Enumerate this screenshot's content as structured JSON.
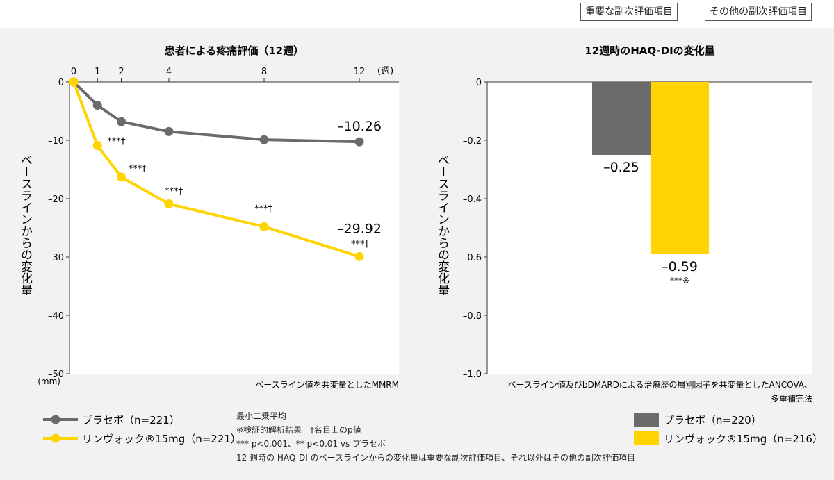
{
  "buttons": {
    "important": "重要な副次評価項目",
    "other": "その他の副次評価項目"
  },
  "colors": {
    "placebo": "#6b6b6b",
    "rinvoq": "#ffd400",
    "plot_bg": "#ffffff",
    "page_bg": "#f2f2f2"
  },
  "chart_data": [
    {
      "type": "line",
      "title": "患者による疼痛評価（12週）",
      "ylabel": "ベースラインからの変化量",
      "y_unit": "(mm)",
      "x_unit": "(週)",
      "x": [
        0,
        1,
        2,
        4,
        8,
        12
      ],
      "x_ticks": [
        "0",
        "1",
        "2",
        "4",
        "8",
        "12"
      ],
      "ylim": [
        -50,
        0
      ],
      "y_ticks": [
        "0",
        "–10",
        "–20",
        "–30",
        "–40",
        "–50"
      ],
      "series": [
        {
          "name": "プラセボ（n=221）",
          "values": [
            0,
            -4,
            -6.8,
            -8.5,
            -9.9,
            -10.26
          ]
        },
        {
          "name": "リンヴォック®15mg（n=221）",
          "values": [
            0,
            -10.9,
            -16.3,
            -20.9,
            -24.8,
            -29.92
          ]
        }
      ],
      "end_labels": [
        "–10.26",
        "–29.92"
      ],
      "significance": [
        "***†",
        "***†",
        "***†",
        "***†",
        "***†"
      ],
      "footnote": "ベースライン値を共変量としたMMRM"
    },
    {
      "type": "bar",
      "title": "12週時のHAQ-DIの変化量",
      "ylabel": "ベースラインからの変化量",
      "ylim": [
        -1.0,
        0
      ],
      "y_ticks": [
        "0",
        "–0.2",
        "–0.4",
        "–0.6",
        "–0.8",
        "–1.0"
      ],
      "categories": [
        "プラセボ（n=220）",
        "リンヴォック®15mg（n=216）"
      ],
      "values": [
        -0.25,
        -0.59
      ],
      "value_labels": [
        "–0.25",
        "–0.59"
      ],
      "significance": "***※",
      "footnote_line1": "ベースライン値及びbDMARDによる治療歴の層別因子を共変量としたANCOVA、",
      "footnote_line2": "多重補完法"
    }
  ],
  "notes": [
    "最小二乗平均",
    "※検証的解析結果　†名目上のp値",
    "*** p<0.001、** p<0.01 vs プラセボ",
    "12 週時の HAQ-DI のベースラインからの変化量は重要な副次評価項目、それ以外はその他の副次評価項目"
  ]
}
